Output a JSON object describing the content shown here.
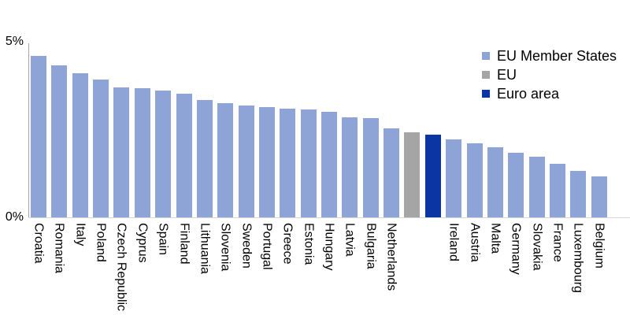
{
  "chart_data": {
    "type": "bar",
    "title": "",
    "xlabel": "",
    "ylabel": "",
    "unit": "%",
    "ylim": [
      0,
      5
    ],
    "grid": false,
    "legend_position": "top-right",
    "label_rotation_deg": 90,
    "yticks": {
      "top": "5%",
      "bottom": "0%"
    },
    "colors": {
      "eu_member_states": "#8ea4d6",
      "eu": "#a5a5a5",
      "euro_area": "#0a35a2"
    },
    "legend": [
      {
        "group": "eu_member_states",
        "label": "EU Member States"
      },
      {
        "group": "eu",
        "label": "EU"
      },
      {
        "group": "euro_area",
        "label": "Euro area"
      }
    ],
    "points": [
      {
        "label": "Croatia",
        "value": 4.65,
        "group": "eu_member_states"
      },
      {
        "label": "Romania",
        "value": 4.37,
        "group": "eu_member_states"
      },
      {
        "label": "Italy",
        "value": 4.14,
        "group": "eu_member_states"
      },
      {
        "label": "Poland",
        "value": 3.96,
        "group": "eu_member_states"
      },
      {
        "label": "Czech Republic",
        "value": 3.74,
        "group": "eu_member_states"
      },
      {
        "label": "Cyprus",
        "value": 3.72,
        "group": "eu_member_states"
      },
      {
        "label": "Spain",
        "value": 3.64,
        "group": "eu_member_states"
      },
      {
        "label": "Finland",
        "value": 3.55,
        "group": "eu_member_states"
      },
      {
        "label": "Lithuania",
        "value": 3.37,
        "group": "eu_member_states"
      },
      {
        "label": "Slovenia",
        "value": 3.29,
        "group": "eu_member_states"
      },
      {
        "label": "Sweden",
        "value": 3.21,
        "group": "eu_member_states"
      },
      {
        "label": "Portugal",
        "value": 3.16,
        "group": "eu_member_states"
      },
      {
        "label": "Greece",
        "value": 3.12,
        "group": "eu_member_states"
      },
      {
        "label": "Estonia",
        "value": 3.11,
        "group": "eu_member_states"
      },
      {
        "label": "Hungary",
        "value": 3.04,
        "group": "eu_member_states"
      },
      {
        "label": "Latvia",
        "value": 2.87,
        "group": "eu_member_states"
      },
      {
        "label": "Bulgaria",
        "value": 2.85,
        "group": "eu_member_states"
      },
      {
        "label": "Netherlands",
        "value": 2.56,
        "group": "eu_member_states"
      },
      {
        "label": "",
        "value": 2.44,
        "group": "eu"
      },
      {
        "label": "",
        "value": 2.38,
        "group": "euro_area"
      },
      {
        "label": "Ireland",
        "value": 2.25,
        "group": "eu_member_states"
      },
      {
        "label": "Austria",
        "value": 2.13,
        "group": "eu_member_states"
      },
      {
        "label": "Malta",
        "value": 2.01,
        "group": "eu_member_states"
      },
      {
        "label": "Germany",
        "value": 1.85,
        "group": "eu_member_states"
      },
      {
        "label": "Slovakia",
        "value": 1.74,
        "group": "eu_member_states"
      },
      {
        "label": "France",
        "value": 1.53,
        "group": "eu_member_states"
      },
      {
        "label": "Luxembourg",
        "value": 1.34,
        "group": "eu_member_states"
      },
      {
        "label": "Belgium",
        "value": 1.17,
        "group": "eu_member_states"
      }
    ]
  }
}
